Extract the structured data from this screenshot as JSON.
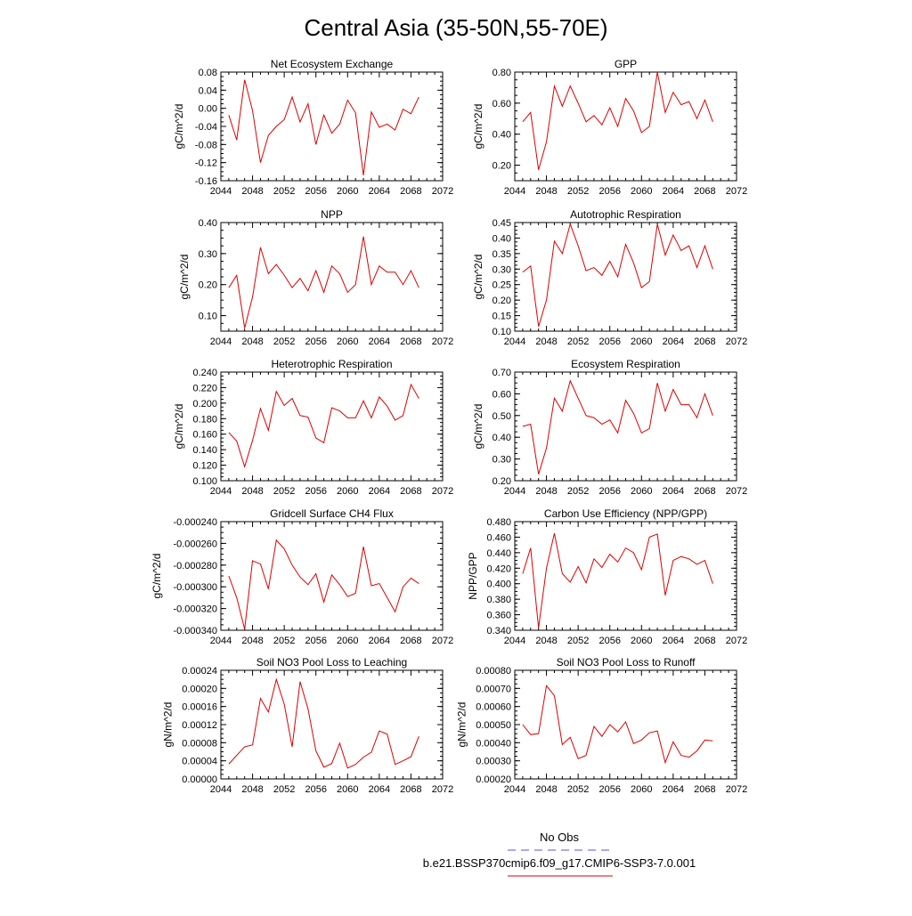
{
  "title": "Central Asia (35-50N,55-70E)",
  "legend": {
    "obs_label": "No Obs",
    "obs_color": "#5555dd",
    "case_label": "b.e21.BSSP370cmip6.f09_g17.CMIP6-SSP3-7.0.001",
    "case_color": "#dd0000"
  },
  "years": [
    2045,
    2046,
    2047,
    2048,
    2049,
    2050,
    2051,
    2052,
    2053,
    2054,
    2055,
    2056,
    2057,
    2058,
    2059,
    2060,
    2061,
    2062,
    2063,
    2064,
    2065,
    2066,
    2067,
    2068,
    2069
  ],
  "chart_data": [
    {
      "type": "line",
      "title": "Net Ecosystem Exchange",
      "ylabel": "gC/m^2/d",
      "xlim": [
        2044,
        2072
      ],
      "xticks": [
        "2044",
        "2048",
        "2052",
        "2056",
        "2060",
        "2064",
        "2068",
        "2072"
      ],
      "ylim": [
        -0.16,
        0.08
      ],
      "yticks": [
        "-0.16",
        "-0.12",
        "-0.08",
        "-0.04",
        "0.00",
        "0.04",
        "0.08"
      ],
      "values": [
        -0.015,
        -0.07,
        0.063,
        -0.005,
        -0.12,
        -0.06,
        -0.04,
        -0.025,
        0.025,
        -0.03,
        0.01,
        -0.08,
        -0.015,
        -0.055,
        -0.035,
        0.018,
        -0.01,
        -0.148,
        -0.008,
        -0.042,
        -0.035,
        -0.048,
        -0.002,
        -0.012,
        0.025
      ]
    },
    {
      "type": "line",
      "title": "GPP",
      "ylabel": "gC/m^2/d",
      "xlim": [
        2044,
        2072
      ],
      "xticks": [
        "2044",
        "2048",
        "2052",
        "2056",
        "2060",
        "2064",
        "2068",
        "2072"
      ],
      "ylim": [
        0.1,
        0.8
      ],
      "yticks": [
        "0.20",
        "0.40",
        "0.60",
        "0.80"
      ],
      "values": [
        0.48,
        0.54,
        0.17,
        0.35,
        0.71,
        0.58,
        0.71,
        0.6,
        0.48,
        0.52,
        0.46,
        0.57,
        0.45,
        0.63,
        0.55,
        0.41,
        0.45,
        0.8,
        0.54,
        0.67,
        0.59,
        0.61,
        0.5,
        0.62,
        0.48
      ]
    },
    {
      "type": "line",
      "title": "NPP",
      "ylabel": "gC/m^2/d",
      "xlim": [
        2044,
        2072
      ],
      "xticks": [
        "2044",
        "2048",
        "2052",
        "2056",
        "2060",
        "2064",
        "2068",
        "2072"
      ],
      "ylim": [
        0.05,
        0.4
      ],
      "yticks": [
        "0.10",
        "0.20",
        "0.30",
        "0.40"
      ],
      "values": [
        0.19,
        0.23,
        0.06,
        0.16,
        0.32,
        0.235,
        0.265,
        0.23,
        0.19,
        0.22,
        0.18,
        0.245,
        0.175,
        0.26,
        0.235,
        0.175,
        0.2,
        0.355,
        0.2,
        0.26,
        0.24,
        0.24,
        0.2,
        0.245,
        0.19
      ]
    },
    {
      "type": "line",
      "title": "Autotrophic Respiration",
      "ylabel": "gC/m^2/d",
      "xlim": [
        2044,
        2072
      ],
      "xticks": [
        "2044",
        "2048",
        "2052",
        "2056",
        "2060",
        "2064",
        "2068",
        "2072"
      ],
      "ylim": [
        0.1,
        0.45
      ],
      "yticks": [
        "0.10",
        "0.15",
        "0.20",
        "0.25",
        "0.30",
        "0.35",
        "0.40",
        "0.45"
      ],
      "values": [
        0.29,
        0.31,
        0.115,
        0.2,
        0.39,
        0.35,
        0.445,
        0.375,
        0.295,
        0.305,
        0.28,
        0.325,
        0.275,
        0.38,
        0.32,
        0.24,
        0.26,
        0.445,
        0.345,
        0.41,
        0.36,
        0.375,
        0.305,
        0.375,
        0.3
      ]
    },
    {
      "type": "line",
      "title": "Heterotrophic Respiration",
      "ylabel": "gC/m^2/d",
      "xlim": [
        2044,
        2072
      ],
      "xticks": [
        "2044",
        "2048",
        "2052",
        "2056",
        "2060",
        "2064",
        "2068",
        "2072"
      ],
      "ylim": [
        0.1,
        0.24
      ],
      "yticks": [
        "0.100",
        "0.120",
        "0.140",
        "0.160",
        "0.180",
        "0.200",
        "0.220",
        "0.240"
      ],
      "values": [
        0.162,
        0.151,
        0.118,
        0.152,
        0.193,
        0.165,
        0.215,
        0.197,
        0.206,
        0.184,
        0.182,
        0.155,
        0.149,
        0.194,
        0.19,
        0.181,
        0.181,
        0.203,
        0.181,
        0.208,
        0.196,
        0.178,
        0.184,
        0.224,
        0.206
      ]
    },
    {
      "type": "line",
      "title": "Ecosystem Respiration",
      "ylabel": "gC/m^2/d",
      "xlim": [
        2044,
        2072
      ],
      "xticks": [
        "2044",
        "2048",
        "2052",
        "2056",
        "2060",
        "2064",
        "2068",
        "2072"
      ],
      "ylim": [
        0.2,
        0.7
      ],
      "yticks": [
        "0.20",
        "0.30",
        "0.40",
        "0.50",
        "0.60",
        "0.70"
      ],
      "values": [
        0.45,
        0.46,
        0.23,
        0.35,
        0.58,
        0.52,
        0.66,
        0.58,
        0.5,
        0.49,
        0.46,
        0.48,
        0.42,
        0.57,
        0.51,
        0.42,
        0.44,
        0.65,
        0.52,
        0.62,
        0.55,
        0.55,
        0.49,
        0.6,
        0.5
      ]
    },
    {
      "type": "line",
      "title": "Gridcell Surface CH4 Flux",
      "ylabel": "gC/m^2/d",
      "xlim": [
        2044,
        2072
      ],
      "xticks": [
        "2044",
        "2048",
        "2052",
        "2056",
        "2060",
        "2064",
        "2068",
        "2072"
      ],
      "ylim": [
        -0.00034,
        -0.00024
      ],
      "yticks": [
        "-0.000340",
        "-0.000320",
        "-0.000300",
        "-0.000280",
        "-0.000260",
        "-0.000240"
      ],
      "values": [
        -0.00029,
        -0.00031,
        -0.000339,
        -0.000276,
        -0.000279,
        -0.000302,
        -0.000257,
        -0.000265,
        -0.00028,
        -0.000291,
        -0.000298,
        -0.000288,
        -0.000314,
        -0.000289,
        -0.000298,
        -0.000309,
        -0.000306,
        -0.000263,
        -0.000299,
        -0.000297,
        -0.00031,
        -0.000323,
        -0.0003,
        -0.000292,
        -0.000297
      ]
    },
    {
      "type": "line",
      "title": "Carbon Use Efficiency (NPP/GPP)",
      "ylabel": "NPP/GPP",
      "xlim": [
        2044,
        2072
      ],
      "xticks": [
        "2044",
        "2048",
        "2052",
        "2056",
        "2060",
        "2064",
        "2068",
        "2072"
      ],
      "ylim": [
        0.34,
        0.48
      ],
      "yticks": [
        "0.340",
        "0.360",
        "0.380",
        "0.400",
        "0.420",
        "0.440",
        "0.460",
        "0.480"
      ],
      "values": [
        0.413,
        0.446,
        0.343,
        0.42,
        0.465,
        0.413,
        0.402,
        0.422,
        0.401,
        0.432,
        0.421,
        0.438,
        0.428,
        0.446,
        0.44,
        0.418,
        0.46,
        0.464,
        0.385,
        0.43,
        0.435,
        0.432,
        0.425,
        0.43,
        0.4
      ]
    },
    {
      "type": "line",
      "title": "Soil NO3 Pool Loss to Leaching",
      "ylabel": "gN/m^2/d",
      "xlim": [
        2044,
        2072
      ],
      "xticks": [
        "2044",
        "2048",
        "2052",
        "2056",
        "2060",
        "2064",
        "2068",
        "2072"
      ],
      "ylim": [
        0,
        0.00024
      ],
      "yticks": [
        "0.00000",
        "0.00004",
        "0.00008",
        "0.00012",
        "0.00016",
        "0.00020",
        "0.00024"
      ],
      "values": [
        3.3e-05,
        5.2e-05,
        7.1e-05,
        7.5e-05,
        0.000178,
        0.000148,
        0.00022,
        0.000165,
        7.1e-05,
        0.000215,
        0.000155,
        6.2e-05,
        2.6e-05,
        3.4e-05,
        7.9e-05,
        2.4e-05,
        3.2e-05,
        4.8e-05,
        5.9e-05,
        0.000106,
        9.9e-05,
        3.2e-05,
        4e-05,
        4.9e-05,
        9.4e-05
      ]
    },
    {
      "type": "line",
      "title": "Soil NO3 Pool Loss to Runoff",
      "ylabel": "gN/m^2/d",
      "xlim": [
        2044,
        2072
      ],
      "xticks": [
        "2044",
        "2048",
        "2052",
        "2056",
        "2060",
        "2064",
        "2068",
        "2072"
      ],
      "ylim": [
        0.0002,
        0.0008
      ],
      "yticks": [
        "0.00020",
        "0.00030",
        "0.00040",
        "0.00050",
        "0.00060",
        "0.00070",
        "0.00080"
      ],
      "values": [
        0.0005,
        0.000445,
        0.00045,
        0.000715,
        0.00066,
        0.00039,
        0.00043,
        0.000312,
        0.00033,
        0.00049,
        0.000435,
        0.0005,
        0.00046,
        0.000515,
        0.000395,
        0.000415,
        0.000455,
        0.000465,
        0.00029,
        0.000405,
        0.00033,
        0.00032,
        0.000355,
        0.000415,
        0.00041
      ]
    }
  ]
}
